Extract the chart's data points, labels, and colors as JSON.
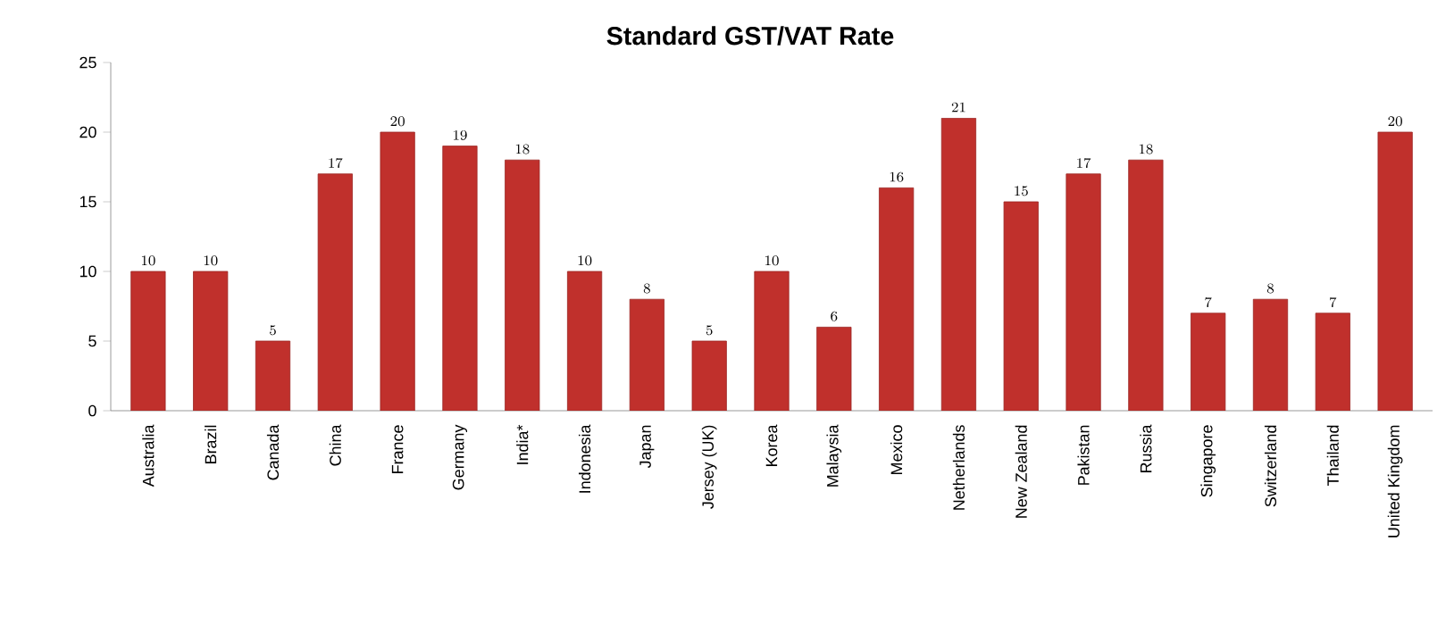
{
  "chart_data": {
    "type": "bar",
    "title": "Standard GST/VAT Rate",
    "categories": [
      "Australia",
      "Brazil",
      "Canada",
      "China",
      "France",
      "Germany",
      "India*",
      "Indonesia",
      "Japan",
      "Jersey (UK)",
      "Korea",
      "Malaysia",
      "Mexico",
      "Netherlands",
      "New Zealand",
      "Pakistan",
      "Russia",
      "Singapore",
      "Switzerland",
      "Thailand",
      "United Kingdom"
    ],
    "values": [
      10,
      10,
      5,
      17,
      20,
      19,
      18,
      10,
      8,
      5,
      10,
      6,
      16,
      21,
      15,
      17,
      18,
      7,
      8,
      7,
      20
    ],
    "color": "#c0302c",
    "ylim": [
      0,
      25
    ],
    "yticks": [
      0,
      5,
      10,
      15,
      20,
      25
    ],
    "grid": false,
    "data_labels": true
  }
}
